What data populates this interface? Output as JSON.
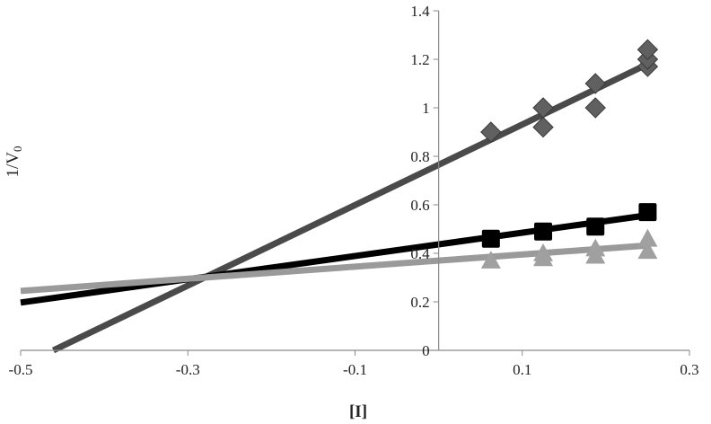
{
  "chart_data": {
    "type": "scatter",
    "title": "",
    "xlabel": "[I]",
    "ylabel_main": "1/V",
    "ylabel_sub": "0",
    "xlim": [
      -0.5,
      0.3
    ],
    "ylim": [
      0,
      1.4
    ],
    "x_ticks": [
      -0.5,
      -0.3,
      -0.1,
      0.1,
      0.3
    ],
    "x_tick_labels": [
      "-0.5",
      "-0.3",
      "-0.1",
      "0.1",
      "0.3"
    ],
    "y_ticks": [
      0,
      0.2,
      0.4,
      0.6,
      0.8,
      1,
      1.2,
      1.4
    ],
    "y_tick_labels": [
      "0",
      "0.2",
      "0.4",
      "0.6",
      "0.8",
      "1",
      "1.2",
      "1.4"
    ],
    "y_axis_at_x": 0,
    "grid": false,
    "legend": "none",
    "series": [
      {
        "marker": "diamond",
        "color": "#606060",
        "line_color": "#4a4a4a",
        "points": [
          {
            "x": 0.0625,
            "y": 0.9
          },
          {
            "x": 0.125,
            "y": 0.92
          },
          {
            "x": 0.125,
            "y": 1.0
          },
          {
            "x": 0.1875,
            "y": 1.0
          },
          {
            "x": 0.1875,
            "y": 1.1
          },
          {
            "x": 0.25,
            "y": 1.17
          },
          {
            "x": 0.25,
            "y": 1.2
          },
          {
            "x": 0.25,
            "y": 1.24
          }
        ],
        "fit": {
          "slope": 1.66,
          "intercept": 0.765
        }
      },
      {
        "marker": "square",
        "color": "#000000",
        "line_color": "#000000",
        "points": [
          {
            "x": 0.0625,
            "y": 0.46
          },
          {
            "x": 0.125,
            "y": 0.49
          },
          {
            "x": 0.1875,
            "y": 0.51
          },
          {
            "x": 0.25,
            "y": 0.57
          }
        ],
        "fit": {
          "slope": 0.48,
          "intercept": 0.437
        }
      },
      {
        "marker": "triangle",
        "color": "#a0a0a0",
        "line_color": "#9a9a9a",
        "points": [
          {
            "x": 0.0625,
            "y": 0.37
          },
          {
            "x": 0.125,
            "y": 0.38
          },
          {
            "x": 0.125,
            "y": 0.4
          },
          {
            "x": 0.1875,
            "y": 0.39
          },
          {
            "x": 0.1875,
            "y": 0.42
          },
          {
            "x": 0.25,
            "y": 0.41
          },
          {
            "x": 0.25,
            "y": 0.46
          }
        ],
        "fit": {
          "slope": 0.25,
          "intercept": 0.37
        }
      }
    ]
  }
}
